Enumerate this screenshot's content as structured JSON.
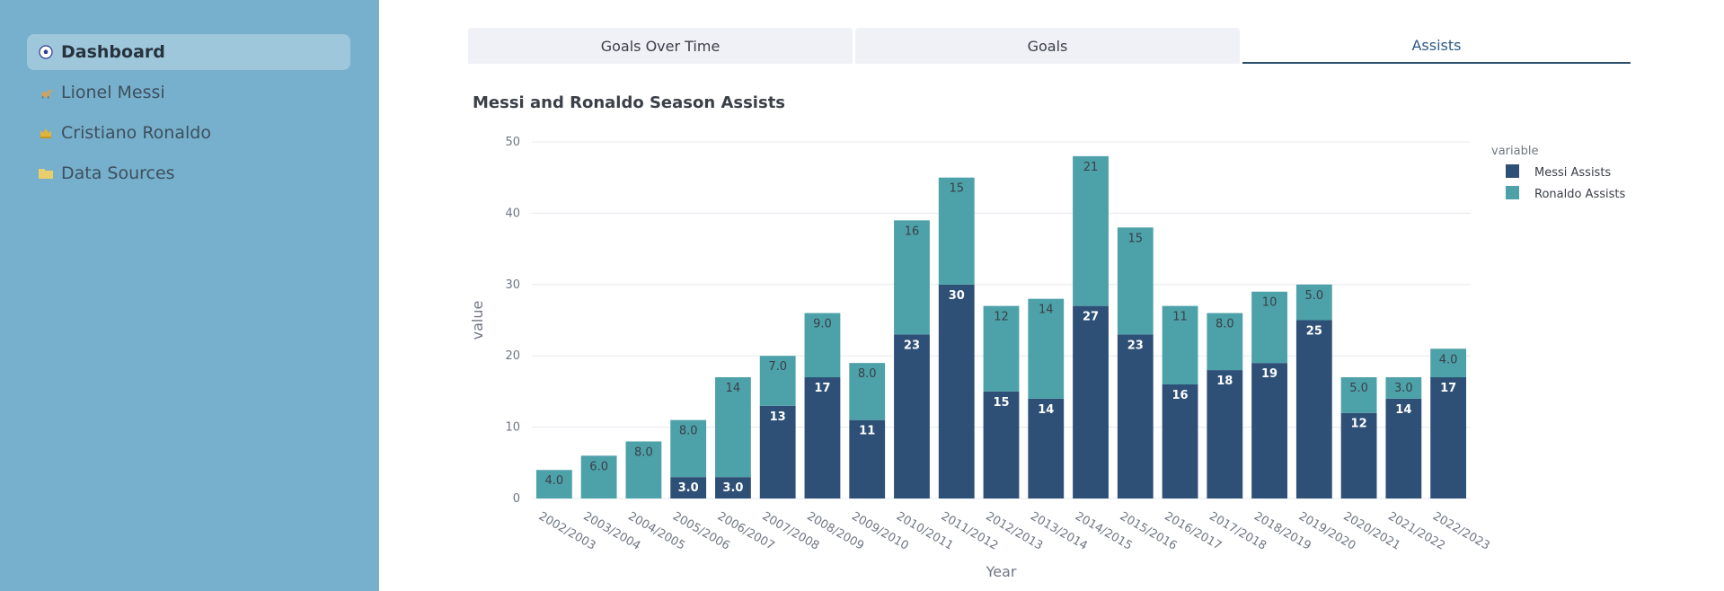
{
  "sidebar": {
    "items": [
      {
        "label": "Dashboard",
        "icon": "soccer-ball-icon",
        "active": true
      },
      {
        "label": "Lionel Messi",
        "icon": "goat-icon",
        "active": false
      },
      {
        "label": "Cristiano Ronaldo",
        "icon": "crown-icon",
        "active": false
      },
      {
        "label": "Data Sources",
        "icon": "folder-icon",
        "active": false
      }
    ]
  },
  "tabs": [
    {
      "label": "Goals Over Time",
      "active": false
    },
    {
      "label": "Goals",
      "active": false
    },
    {
      "label": "Assists",
      "active": true
    }
  ],
  "colors": {
    "messi": "#2e5077",
    "ronaldo": "#4da1a9",
    "sidebar": "#77b0cd",
    "tab_active": "#2c4f6c"
  },
  "chart_data": {
    "type": "bar",
    "stacked": true,
    "title": "Messi and Ronaldo Season Assists",
    "xlabel": "Year",
    "ylabel": "value",
    "ylim": [
      0,
      50
    ],
    "yticks": [
      0,
      10,
      20,
      30,
      40,
      50
    ],
    "legend_title": "variable",
    "legend_position": "top-right",
    "categories": [
      "2002/2003",
      "2003/2004",
      "2004/2005",
      "2005/2006",
      "2006/2007",
      "2007/2008",
      "2008/2009",
      "2009/2010",
      "2010/2011",
      "2011/2012",
      "2012/2013",
      "2013/2014",
      "2014/2015",
      "2015/2016",
      "2016/2017",
      "2017/2018",
      "2018/2019",
      "2019/2020",
      "2020/2021",
      "2021/2022",
      "2022/2023"
    ],
    "series": [
      {
        "name": "Messi Assists",
        "values": [
          0,
          0,
          0,
          3,
          3,
          13,
          17,
          11,
          23,
          30,
          15,
          14,
          27,
          23,
          16,
          18,
          19,
          25,
          12,
          14,
          17
        ]
      },
      {
        "name": "Ronaldo Assists",
        "values": [
          4,
          6,
          8,
          8,
          14,
          7,
          9,
          8,
          16,
          15,
          12,
          14,
          21,
          15,
          11,
          8,
          10,
          5,
          5,
          3,
          4
        ]
      }
    ]
  }
}
